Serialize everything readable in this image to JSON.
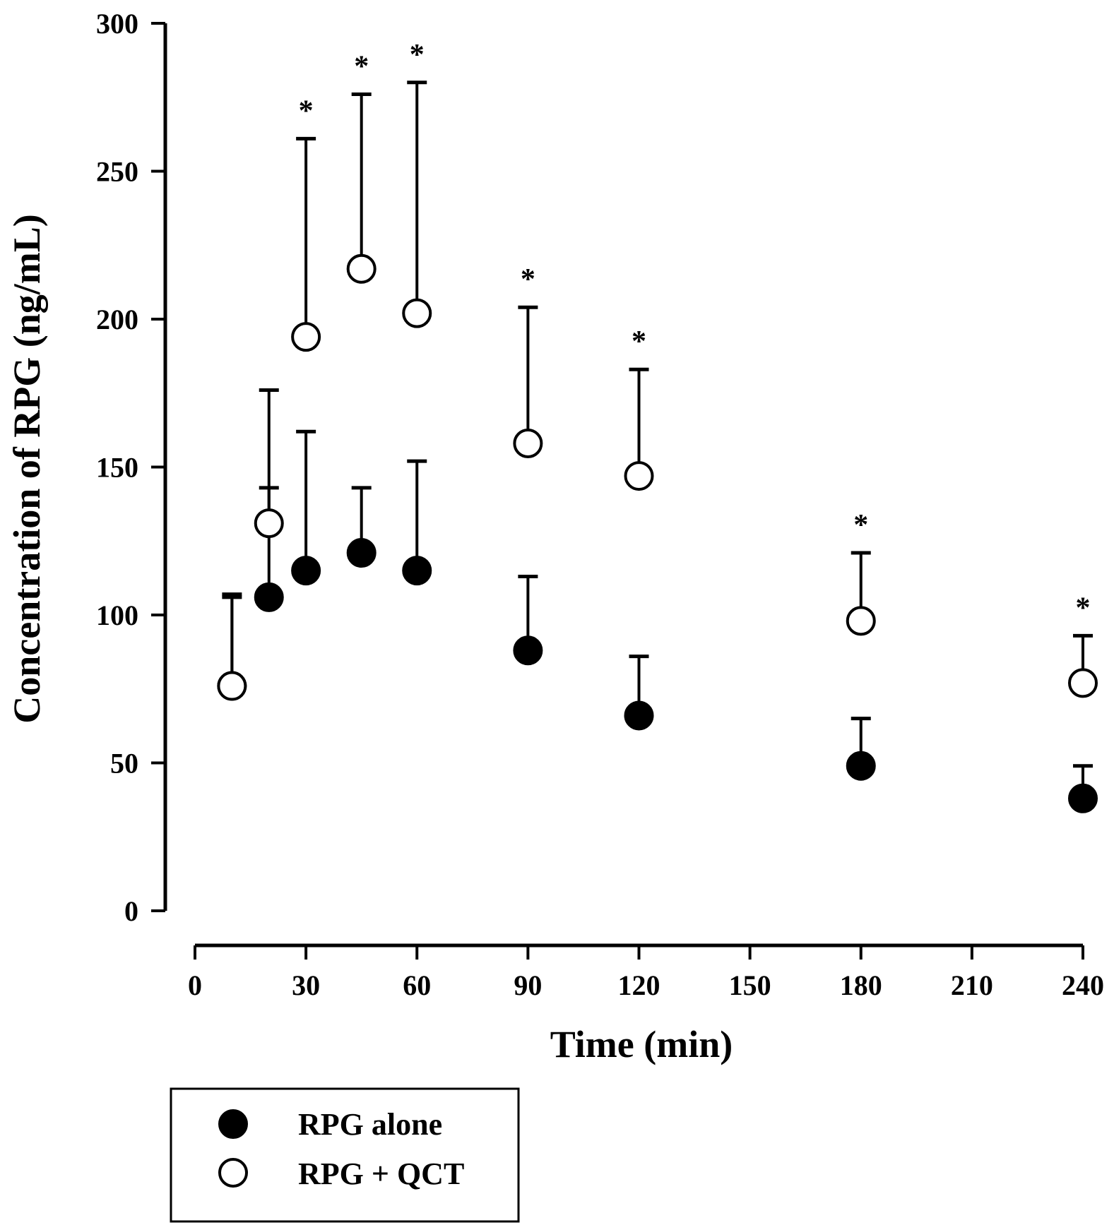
{
  "chart_data": {
    "type": "scatter",
    "title": "",
    "xlabel": "Time (min)",
    "ylabel": "Concentration of RPG (ng/mL)",
    "xlim": [
      0,
      240
    ],
    "ylim": [
      0,
      300
    ],
    "xticks": [
      0,
      30,
      60,
      90,
      120,
      150,
      180,
      210,
      240
    ],
    "yticks": [
      0,
      50,
      100,
      150,
      200,
      250,
      300
    ],
    "grid": false,
    "legend_position": "below",
    "significance_marker": "*",
    "series": [
      {
        "name": "RPG alone",
        "marker": "filled-circle",
        "color": "#000000",
        "points": [
          {
            "x": 10,
            "y": 76,
            "err": 30
          },
          {
            "x": 20,
            "y": 106,
            "err": 37
          },
          {
            "x": 30,
            "y": 115,
            "err": 47
          },
          {
            "x": 45,
            "y": 121,
            "err": 22
          },
          {
            "x": 60,
            "y": 115,
            "err": 37
          },
          {
            "x": 90,
            "y": 88,
            "err": 25
          },
          {
            "x": 120,
            "y": 66,
            "err": 20
          },
          {
            "x": 180,
            "y": 49,
            "err": 16
          },
          {
            "x": 240,
            "y": 38,
            "err": 11
          }
        ]
      },
      {
        "name": "RPG + QCT",
        "marker": "open-circle",
        "color": "#000000",
        "points": [
          {
            "x": 10,
            "y": 76,
            "err": 31,
            "sig": false
          },
          {
            "x": 20,
            "y": 131,
            "err": 45,
            "sig": false
          },
          {
            "x": 30,
            "y": 194,
            "err": 67,
            "sig": true
          },
          {
            "x": 45,
            "y": 217,
            "err": 59,
            "sig": true
          },
          {
            "x": 60,
            "y": 202,
            "err": 78,
            "sig": true
          },
          {
            "x": 90,
            "y": 158,
            "err": 46,
            "sig": true
          },
          {
            "x": 120,
            "y": 147,
            "err": 36,
            "sig": true
          },
          {
            "x": 180,
            "y": 98,
            "err": 23,
            "sig": true
          },
          {
            "x": 240,
            "y": 77,
            "err": 16,
            "sig": true
          }
        ]
      }
    ]
  }
}
